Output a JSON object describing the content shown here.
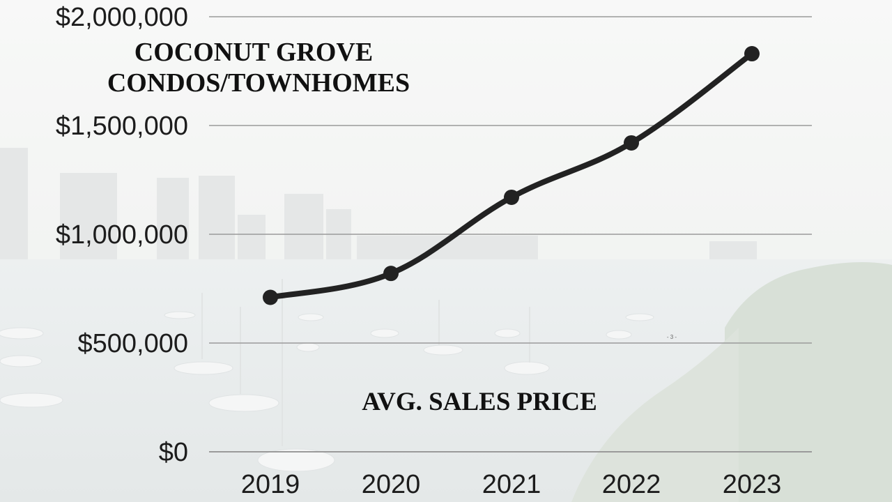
{
  "chart_data": {
    "type": "line",
    "title_lines": [
      "COCONUT GROVE",
      "CONDOS/TOWNHOMES"
    ],
    "subtitle": "AVG. SALES PRICE",
    "page_mark": "- 3 -",
    "categories": [
      "2019",
      "2020",
      "2021",
      "2022",
      "2023"
    ],
    "series": [
      {
        "values": [
          710000,
          820000,
          1170000,
          1420000,
          1830000
        ]
      }
    ],
    "ylim": [
      0,
      2000000
    ],
    "y_ticks": [
      0,
      500000,
      1000000,
      1500000,
      2000000
    ],
    "y_tick_labels": [
      "$0",
      "$500,000",
      "$1,000,000",
      "$1,500,000",
      "$2,000,000"
    ],
    "grid": true,
    "line_color": "#222222",
    "grid_color": "#9a9a9a"
  }
}
